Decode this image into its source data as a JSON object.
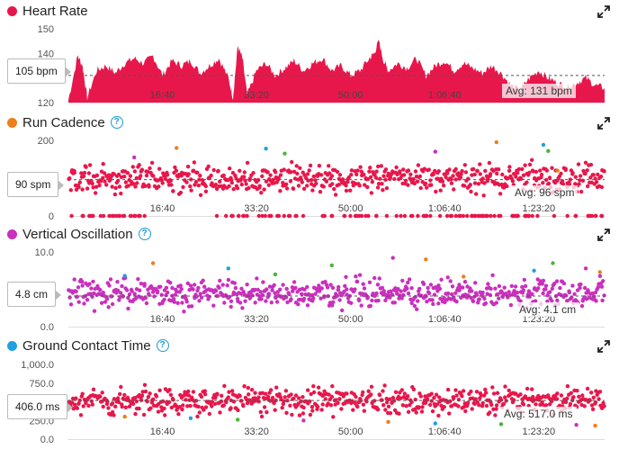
{
  "colors": {
    "hr": "#e8174b",
    "cadence": "#e8174b",
    "vo": "#c930bd",
    "gct": "#e8174b",
    "orange": "#ee7f1b",
    "purple": "#c930bd",
    "blue": "#1fa0e0",
    "green": "#4bb33a",
    "legend_hr": "#e8174b",
    "legend_cad": "#ee7f1b",
    "legend_vo": "#c930bd",
    "legend_gct": "#1fa0e0"
  },
  "icons": {
    "help": "question-circle-icon",
    "expand": "expand-arrows-icon"
  },
  "panels": [
    {
      "title": "Heart Rate",
      "has_help": false,
      "callout": "105 bpm",
      "avg": "Avg: 131 bpm"
    },
    {
      "title": "Run Cadence",
      "has_help": true,
      "callout": "90 spm",
      "avg": "Avg: 96 spm"
    },
    {
      "title": "Vertical Oscillation",
      "has_help": true,
      "callout": "4.8 cm",
      "avg": "Avg: 4.1 cm"
    },
    {
      "title": "Ground Contact Time",
      "has_help": true,
      "callout": "406.0 ms",
      "avg": "Avg: 517.0 ms"
    }
  ],
  "chart_data": [
    {
      "type": "area",
      "title": "Heart Rate",
      "ylim": [
        120,
        150
      ],
      "ytick_labels": [
        "150",
        "140",
        "130",
        "120"
      ],
      "yticks": [
        150,
        140,
        130,
        120
      ],
      "x_tick_labels": [
        "16:40",
        "33:20",
        "50:00",
        "1:06:40",
        "1:23:20"
      ],
      "x_ticks_s": [
        1000,
        2000,
        3000,
        4000,
        5000
      ],
      "xlim_s": [
        0,
        5700
      ],
      "avg": 131,
      "series": [
        {
          "x_s": [
            0,
            100,
            150,
            200,
            300,
            400,
            500,
            600,
            700,
            800,
            900,
            1000,
            1100,
            1200,
            1300,
            1400,
            1500,
            1600,
            1700,
            1750,
            1800,
            1850,
            1900,
            2000,
            2100,
            2200,
            2300,
            2400,
            2500,
            2600,
            2700,
            2800,
            2900,
            3000,
            3100,
            3200,
            3250,
            3300,
            3350,
            3400,
            3500,
            3600,
            3700,
            3800,
            3900,
            4000,
            4100,
            4200,
            4300,
            4400,
            4500,
            4600,
            4700,
            4800,
            4900,
            5000,
            5100,
            5200,
            5300,
            5400,
            5500,
            5600,
            5700
          ],
          "y": [
            121,
            139,
            135,
            122,
            133,
            135,
            132,
            136,
            138,
            136,
            139,
            131,
            137,
            135,
            137,
            132,
            135,
            138,
            130,
            122,
            143,
            138,
            123,
            133,
            136,
            131,
            134,
            137,
            133,
            136,
            138,
            133,
            135,
            131,
            133,
            138,
            140,
            145,
            137,
            133,
            136,
            134,
            138,
            131,
            135,
            137,
            133,
            136,
            134,
            132,
            135,
            132,
            127,
            125,
            130,
            133,
            130,
            128,
            126,
            128,
            130,
            127,
            126
          ]
        }
      ]
    },
    {
      "type": "scatter",
      "title": "Run Cadence",
      "ylim": [
        0,
        200
      ],
      "ytick_labels": [
        "200",
        "100",
        "0"
      ],
      "yticks": [
        200,
        100,
        0
      ],
      "x_tick_labels": [
        "16:40",
        "33:20",
        "50:00",
        "1:06:40",
        "1:23:20"
      ],
      "x_ticks_s": [
        1000,
        2000,
        3000,
        4000,
        5000
      ],
      "xlim_s": [
        0,
        5700
      ],
      "avg": 96,
      "series": [
        {
          "name": "",
          "band": [
            60,
            140
          ],
          "zero_points": true
        },
        {
          "name": "",
          "points": [
            [
              1150,
              180
            ],
            [
              2100,
              178
            ],
            [
              2300,
              165
            ],
            [
              3900,
              170
            ],
            [
              4550,
              195
            ],
            [
              5050,
              188
            ],
            [
              5100,
              172
            ],
            [
              700,
              155
            ],
            [
              5200,
              120
            ]
          ]
        }
      ]
    },
    {
      "type": "scatter",
      "title": "Vertical Oscillation",
      "ylim": [
        0,
        10
      ],
      "ytick_labels": [
        "10.0",
        "5.0",
        "0.0"
      ],
      "yticks": [
        10,
        5,
        0
      ],
      "x_tick_labels": [
        "16:40",
        "33:20",
        "50:00",
        "1:06:40",
        "1:23:20"
      ],
      "x_ticks_s": [
        1000,
        2000,
        3000,
        4000,
        5000
      ],
      "xlim_s": [
        0,
        5700
      ],
      "avg": 4.1,
      "series": [
        {
          "name": "",
          "band": [
            2.5,
            6.5
          ]
        },
        {
          "name": "",
          "points": [
            [
              900,
              8.5
            ],
            [
              1700,
              7.8
            ],
            [
              2800,
              8.2
            ],
            [
              3450,
              9.2
            ],
            [
              3800,
              9.0
            ],
            [
              4950,
              7.5
            ],
            [
              5150,
              8.5
            ],
            [
              5500,
              7.8
            ],
            [
              5650,
              7.3
            ],
            [
              600,
              6.8
            ],
            [
              2200,
              7.0
            ],
            [
              3100,
              6.9
            ],
            [
              4200,
              6.7
            ]
          ]
        }
      ]
    },
    {
      "type": "scatter",
      "title": "Ground Contact Time",
      "ylim": [
        0,
        1000
      ],
      "ytick_labels": [
        "1,000.0",
        "750.0",
        "500.0",
        "250.0",
        "0.0"
      ],
      "yticks": [
        1000,
        750,
        500,
        250,
        0
      ],
      "x_tick_labels": [
        "16:40",
        "33:20",
        "50:00",
        "1:06:40",
        "1:23:20"
      ],
      "x_ticks_s": [
        1000,
        2000,
        3000,
        4000,
        5000
      ],
      "xlim_s": [
        0,
        5700
      ],
      "avg": 517,
      "series": [
        {
          "name": "",
          "band": [
            320,
            700
          ]
        },
        {
          "name": "",
          "points": [
            [
              600,
              300
            ],
            [
              1300,
              280
            ],
            [
              1800,
              260
            ],
            [
              2500,
              250
            ],
            [
              3400,
              230
            ],
            [
              3900,
              210
            ],
            [
              4600,
              200
            ],
            [
              5400,
              190
            ],
            [
              5600,
              180
            ]
          ]
        }
      ]
    }
  ]
}
